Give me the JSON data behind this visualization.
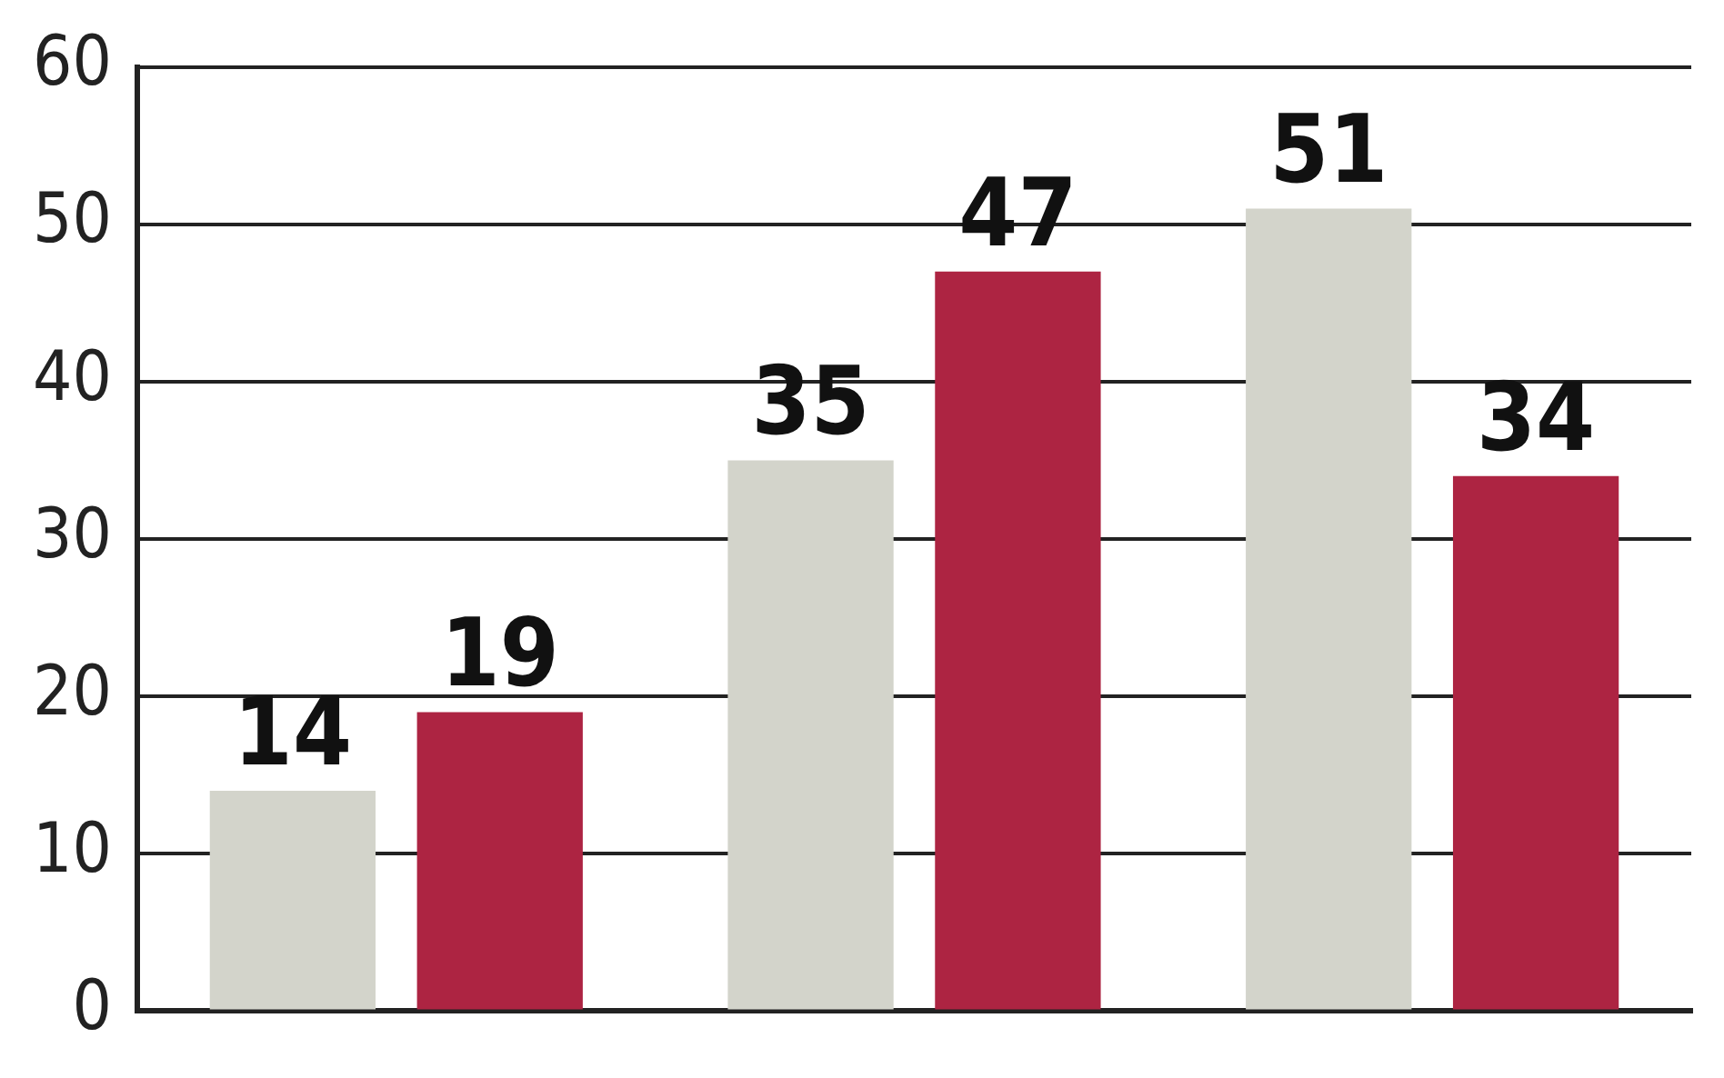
{
  "chart_data": {
    "type": "bar",
    "categories": [
      null,
      null,
      null
    ],
    "series": [
      {
        "color": "#d3d4cb",
        "values": [
          14,
          35,
          51
        ]
      },
      {
        "color": "#ad2442",
        "values": [
          19,
          47,
          34
        ]
      }
    ],
    "ylim": [
      0,
      60
    ],
    "yticks": [
      0,
      10,
      20,
      30,
      40,
      50,
      60
    ],
    "grid": "y",
    "data_labels": true
  }
}
